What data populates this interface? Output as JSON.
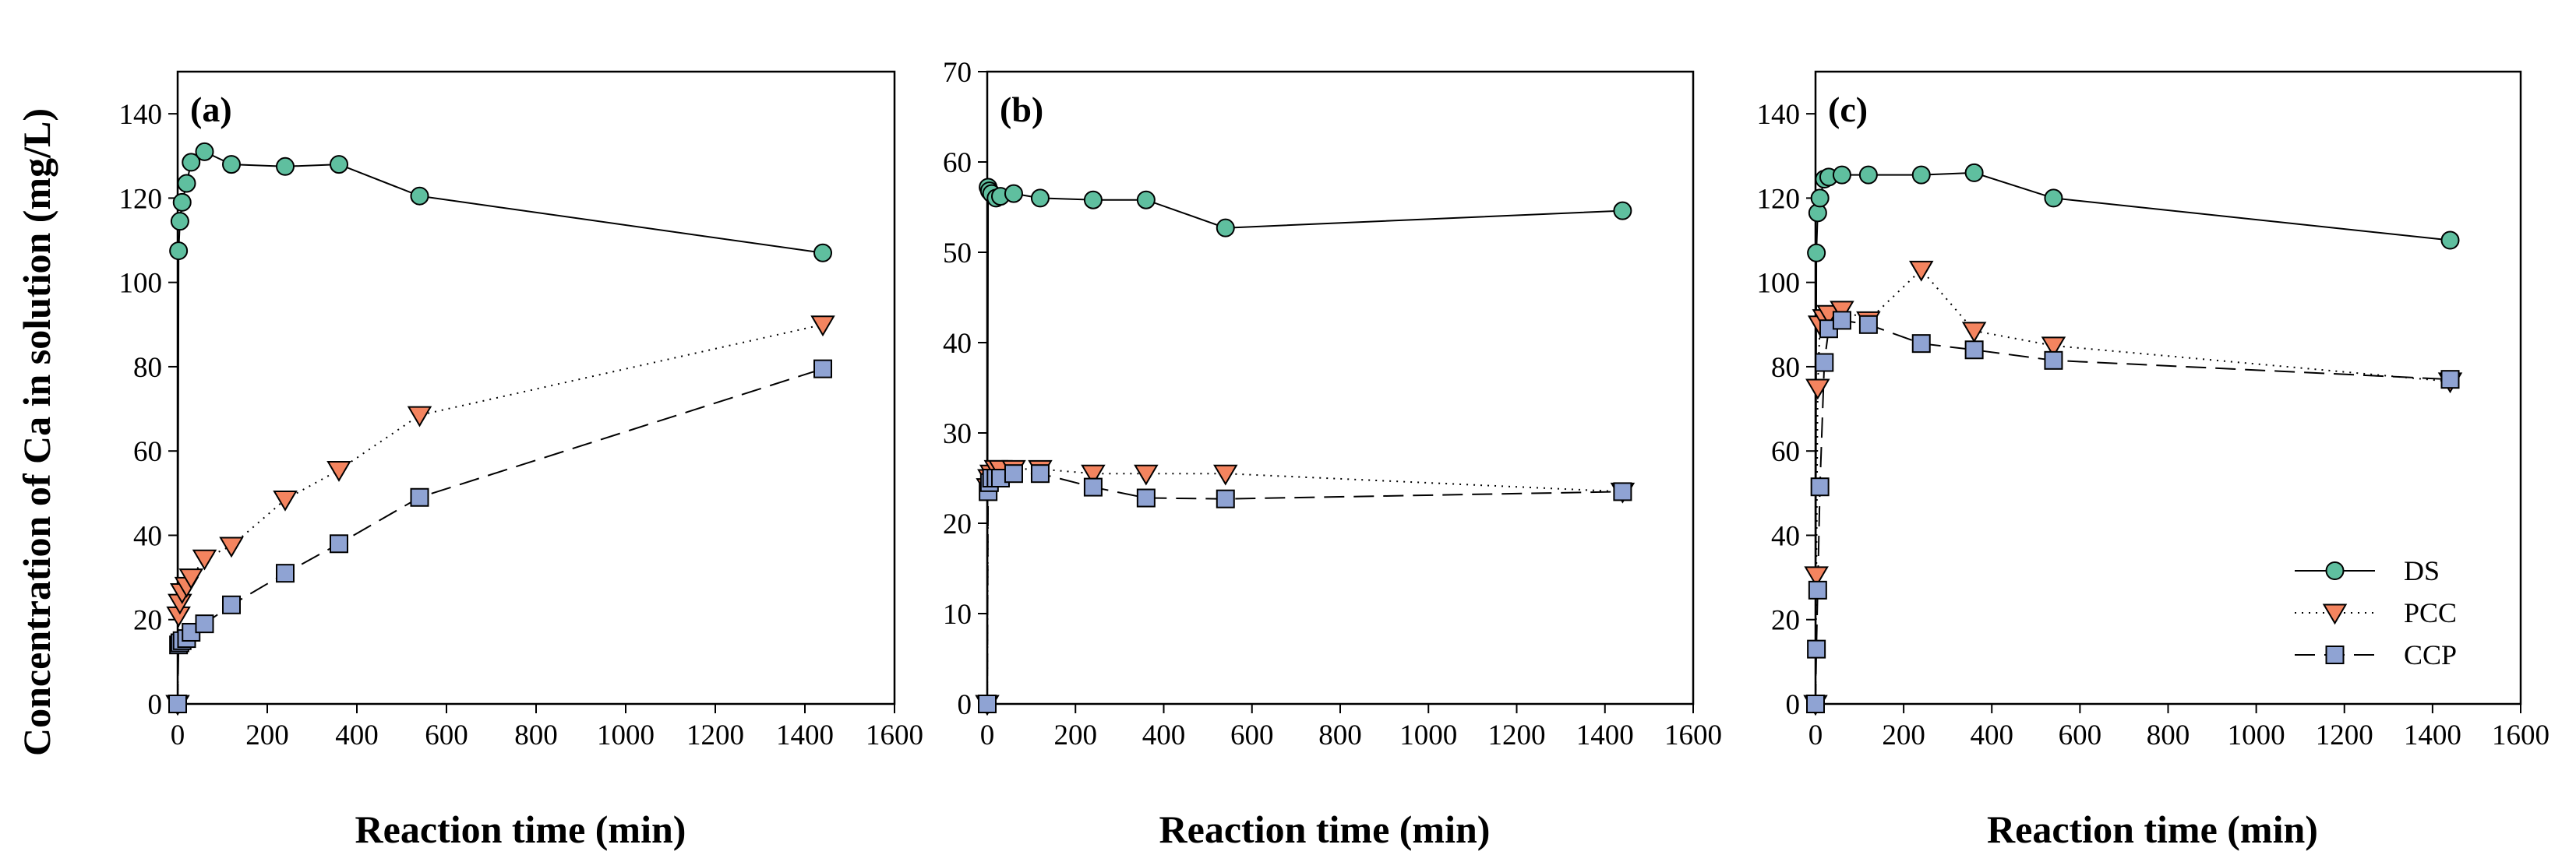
{
  "figure": {
    "ylabel": "Concentration of Ca in solution (mg/L)"
  },
  "legend": {
    "placement": "bottom-right of panel (c)",
    "entries": [
      {
        "label": "DS",
        "marker": "circle",
        "line": "solid",
        "color": "#5fbf9f"
      },
      {
        "label": "PCC",
        "marker": "triangle-down",
        "line": "dotted",
        "color": "#f4845f"
      },
      {
        "label": "CCP",
        "marker": "square",
        "line": "dashed",
        "color": "#8fa3d3"
      }
    ]
  },
  "chart_data": [
    {
      "type": "line",
      "panel_label": "(a)",
      "xlabel": "Reaction time (min)",
      "xlim": [
        0,
        1600
      ],
      "ylim": [
        0,
        150
      ],
      "xticks": [
        0,
        200,
        400,
        600,
        800,
        1000,
        1200,
        1400,
        1600
      ],
      "yticks": [
        0,
        20,
        40,
        60,
        80,
        100,
        120,
        140
      ],
      "grid": false,
      "series": [
        {
          "name": "DS",
          "x": [
            0,
            2,
            5,
            10,
            20,
            30,
            60,
            120,
            240,
            360,
            540,
            1440
          ],
          "y": [
            0,
            107.5,
            114.5,
            119,
            123.5,
            128.5,
            131,
            128,
            127.5,
            128,
            120.5,
            107
          ]
        },
        {
          "name": "PCC",
          "x": [
            0,
            2,
            5,
            10,
            20,
            30,
            60,
            120,
            240,
            360,
            540,
            1440
          ],
          "y": [
            0,
            21,
            24,
            26.5,
            28,
            30,
            34.5,
            37.5,
            48.5,
            55.5,
            68.5,
            90
          ]
        },
        {
          "name": "CCP",
          "x": [
            0,
            2,
            5,
            10,
            20,
            30,
            60,
            120,
            240,
            360,
            540,
            1440
          ],
          "y": [
            0,
            14,
            14.5,
            15,
            15.5,
            17,
            19,
            23.5,
            31,
            38,
            49,
            79.5
          ]
        }
      ]
    },
    {
      "type": "line",
      "panel_label": "(b)",
      "xlabel": "Reaction time (min)",
      "xlim": [
        0,
        1600
      ],
      "ylim": [
        0,
        70
      ],
      "xticks": [
        0,
        200,
        400,
        600,
        800,
        1000,
        1200,
        1400,
        1600
      ],
      "yticks": [
        0,
        10,
        20,
        30,
        40,
        50,
        60,
        70
      ],
      "grid": false,
      "series": [
        {
          "name": "DS",
          "x": [
            0,
            2,
            5,
            10,
            20,
            30,
            60,
            120,
            240,
            360,
            540,
            1440
          ],
          "y": [
            0,
            57.2,
            56.8,
            56.5,
            56,
            56.2,
            56.5,
            56,
            55.8,
            55.8,
            52.7,
            54.6
          ]
        },
        {
          "name": "PCC",
          "x": [
            0,
            2,
            5,
            10,
            20,
            30,
            60,
            120,
            240,
            360,
            540,
            1440
          ],
          "y": [
            0,
            24,
            25,
            25.5,
            26,
            26,
            26,
            26,
            25.5,
            25.5,
            25.5,
            23.5
          ]
        },
        {
          "name": "CCP",
          "x": [
            0,
            2,
            5,
            10,
            20,
            30,
            60,
            120,
            240,
            360,
            540,
            1440
          ],
          "y": [
            0,
            23.5,
            24.5,
            25,
            25,
            25,
            25.5,
            25.5,
            24,
            22.8,
            22.7,
            23.5
          ]
        }
      ]
    },
    {
      "type": "line",
      "panel_label": "(c)",
      "xlabel": "Reaction time (min)",
      "xlim": [
        0,
        1600
      ],
      "ylim": [
        0,
        150
      ],
      "xticks": [
        0,
        200,
        400,
        600,
        800,
        1000,
        1200,
        1400,
        1600
      ],
      "yticks": [
        0,
        20,
        40,
        60,
        80,
        100,
        120,
        140
      ],
      "grid": false,
      "series": [
        {
          "name": "DS",
          "x": [
            0,
            2,
            5,
            10,
            20,
            30,
            60,
            120,
            240,
            360,
            540,
            1440
          ],
          "y": [
            0,
            107,
            116.5,
            120,
            124.5,
            125,
            125.5,
            125.5,
            125.5,
            126,
            120,
            110
          ]
        },
        {
          "name": "PCC",
          "x": [
            0,
            2,
            5,
            10,
            20,
            30,
            60,
            120,
            240,
            360,
            540,
            1440
          ],
          "y": [
            0,
            30.5,
            75,
            90,
            91.5,
            92.5,
            93.5,
            91,
            103,
            88.5,
            85,
            76.5
          ]
        },
        {
          "name": "CCP",
          "x": [
            0,
            2,
            5,
            10,
            20,
            30,
            60,
            120,
            240,
            360,
            540,
            1440
          ],
          "y": [
            0,
            13,
            27,
            51.5,
            81,
            89,
            91,
            90,
            85.5,
            84,
            81.5,
            77
          ]
        }
      ]
    }
  ]
}
